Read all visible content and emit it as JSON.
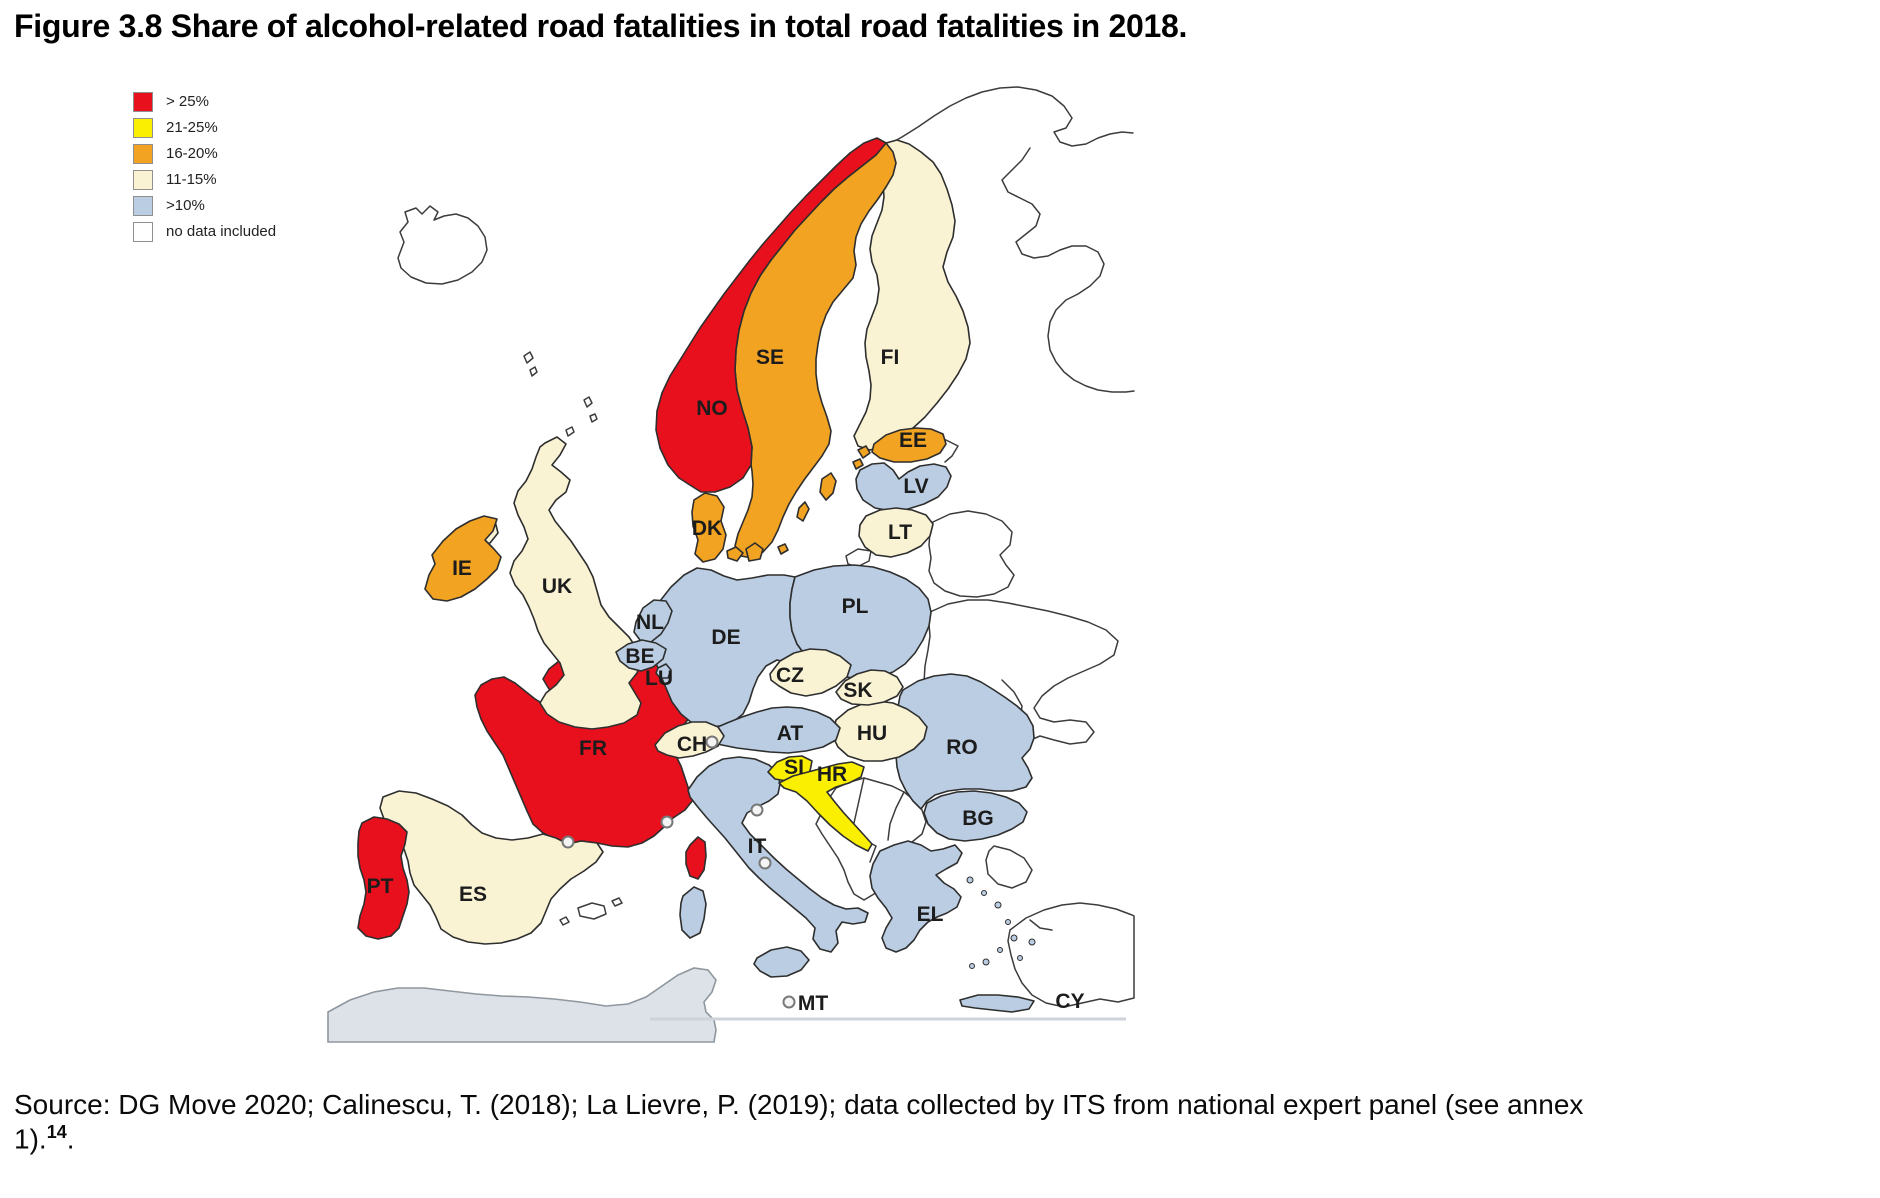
{
  "title": "Figure 3.8 Share of alcohol-related road fatalities in total road fatalities in 2018.",
  "legend": {
    "items": [
      {
        "key": "gt25",
        "label": "> 25%",
        "color": "#E8101C"
      },
      {
        "key": "y21_25",
        "label": "21-25%",
        "color": "#FAEF00"
      },
      {
        "key": "o16_20",
        "label": "16-20%",
        "color": "#F2A321"
      },
      {
        "key": "c11_15",
        "label": "11-15%",
        "color": "#F9F3D4"
      },
      {
        "key": "b_lt10",
        "label": ">10%",
        "color": "#BACDE2"
      },
      {
        "key": "no_data",
        "label": "no data included",
        "color": "#FFFFFF"
      }
    ]
  },
  "map": {
    "countries": [
      {
        "code": "NO",
        "label": "NO",
        "category": "gt25"
      },
      {
        "code": "SE",
        "label": "SE",
        "category": "o16_20"
      },
      {
        "code": "FI",
        "label": "FI",
        "category": "c11_15"
      },
      {
        "code": "EE",
        "label": "EE",
        "category": "o16_20"
      },
      {
        "code": "LV",
        "label": "LV",
        "category": "b_lt10"
      },
      {
        "code": "LT",
        "label": "LT",
        "category": "c11_15"
      },
      {
        "code": "DK",
        "label": "DK",
        "category": "o16_20"
      },
      {
        "code": "IE",
        "label": "IE",
        "category": "o16_20"
      },
      {
        "code": "UK",
        "label": "UK",
        "category": "c11_15"
      },
      {
        "code": "NL",
        "label": "NL",
        "category": "b_lt10"
      },
      {
        "code": "BE",
        "label": "BE",
        "category": "b_lt10"
      },
      {
        "code": "LU",
        "label": "LU",
        "category": "b_lt10"
      },
      {
        "code": "DE",
        "label": "DE",
        "category": "b_lt10"
      },
      {
        "code": "PL",
        "label": "PL",
        "category": "b_lt10"
      },
      {
        "code": "CZ",
        "label": "CZ",
        "category": "c11_15"
      },
      {
        "code": "SK",
        "label": "SK",
        "category": "c11_15"
      },
      {
        "code": "AT",
        "label": "AT",
        "category": "b_lt10"
      },
      {
        "code": "HU",
        "label": "HU",
        "category": "c11_15"
      },
      {
        "code": "CH",
        "label": "CH",
        "category": "c11_15"
      },
      {
        "code": "FR",
        "label": "FR",
        "category": "gt25"
      },
      {
        "code": "SI",
        "label": "SI",
        "category": "y21_25"
      },
      {
        "code": "HR",
        "label": "HR",
        "category": "y21_25"
      },
      {
        "code": "RO",
        "label": "RO",
        "category": "b_lt10"
      },
      {
        "code": "BG",
        "label": "BG",
        "category": "b_lt10"
      },
      {
        "code": "IT",
        "label": "IT",
        "category": "b_lt10"
      },
      {
        "code": "ES",
        "label": "ES",
        "category": "c11_15"
      },
      {
        "code": "PT",
        "label": "PT",
        "category": "gt25"
      },
      {
        "code": "EL",
        "label": "EL",
        "category": "b_lt10"
      },
      {
        "code": "MT",
        "label": "MT",
        "category": "no_data"
      },
      {
        "code": "CY",
        "label": "CY",
        "category": "no_data"
      }
    ]
  },
  "source": {
    "text": "Source: DG Move 2020; Calinescu, T. (2018); La Lievre, P. (2019); data collected by ITS from national expert panel (see annex 1).",
    "footnote": "14",
    "suffix": "."
  }
}
